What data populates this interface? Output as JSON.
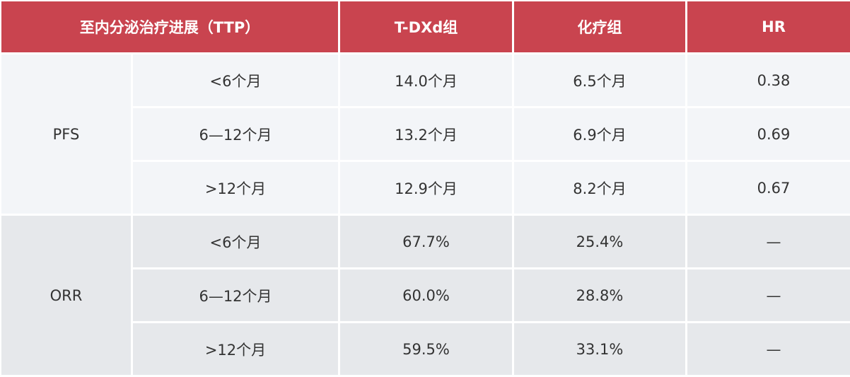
{
  "header": {
    "ttp": "至内分泌治疗进展（TTP）",
    "tdxd": "T-DXd组",
    "chemo": "化疗组",
    "hr": "HR"
  },
  "groups": [
    {
      "label": "PFS",
      "rows": [
        {
          "ttp": "<6个月",
          "tdxd": "14.0个月",
          "chemo": "6.5个月",
          "hr": "0.38"
        },
        {
          "ttp": "6—12个月",
          "tdxd": "13.2个月",
          "chemo": "6.9个月",
          "hr": "0.69"
        },
        {
          "ttp": ">12个月",
          "tdxd": "12.9个月",
          "chemo": "8.2个月",
          "hr": "0.67"
        }
      ]
    },
    {
      "label": "ORR",
      "rows": [
        {
          "ttp": "<6个月",
          "tdxd": "67.7%",
          "chemo": "25.4%",
          "hr": "—"
        },
        {
          "ttp": "6—12个月",
          "tdxd": "60.0%",
          "chemo": "28.8%",
          "hr": "—"
        },
        {
          "ttp": ">12个月",
          "tdxd": "59.5%",
          "chemo": "33.1%",
          "hr": "—"
        }
      ]
    }
  ],
  "colors": {
    "header": "#c9444f",
    "pfs_bg": "#f3f5f8",
    "orr_bg": "#e6e8eb"
  }
}
